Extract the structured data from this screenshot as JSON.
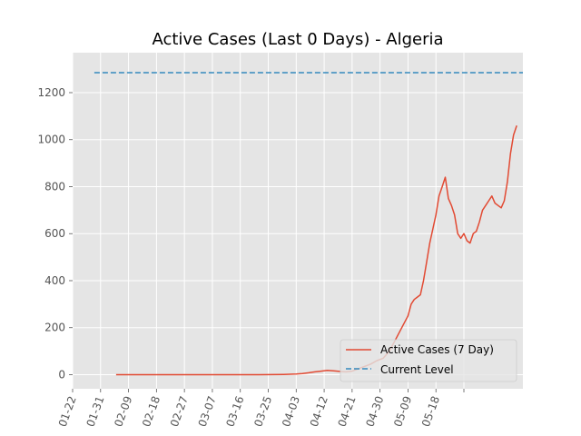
{
  "chart_data": {
    "type": "line",
    "title": "Active Cases (Last 0 Days) - Algeria",
    "xlabel": "",
    "ylabel": "",
    "x_tick_labels": [
      "01-22",
      "01-31",
      "02-09",
      "02-18",
      "02-27",
      "03-07",
      "03-16",
      "03-25",
      "04-03",
      "04-12",
      "04-21",
      "04-30",
      "05-09",
      "05-18"
    ],
    "y_tick_labels": [
      "0",
      "200",
      "400",
      "600",
      "800",
      "1000",
      "1200"
    ],
    "y_ticks": [
      0,
      200,
      400,
      600,
      800,
      1000,
      1200
    ],
    "x_range_days": [
      0,
      145
    ],
    "ylim": [
      -60,
      1370
    ],
    "grid": true,
    "legend_position": "lower-right",
    "background_color": "#e5e5e5",
    "series": [
      {
        "name": "Active Cases (7 Day)",
        "color": "#e24a33",
        "style": "solid",
        "x_days": [
          14,
          20,
          30,
          40,
          50,
          60,
          68,
          70,
          72,
          74,
          76,
          78,
          80,
          82,
          84,
          86,
          88,
          90,
          92,
          94,
          96,
          98,
          100,
          102,
          104,
          106,
          108,
          109,
          110,
          111,
          112,
          113,
          114,
          115,
          116,
          117,
          118,
          119,
          120,
          121,
          122,
          123,
          124,
          125,
          126,
          127,
          128,
          129,
          130,
          131,
          132,
          133,
          134,
          135,
          136,
          137,
          138,
          139,
          140,
          141,
          142,
          143
        ],
        "values": [
          0,
          0,
          0,
          0,
          0,
          0,
          1,
          2,
          3,
          5,
          8,
          12,
          15,
          18,
          16,
          14,
          12,
          15,
          25,
          35,
          45,
          60,
          70,
          100,
          150,
          200,
          250,
          300,
          320,
          330,
          340,
          400,
          480,
          560,
          620,
          680,
          760,
          800,
          840,
          750,
          720,
          680,
          600,
          580,
          600,
          570,
          560,
          600,
          610,
          650,
          700,
          720,
          740,
          760,
          730,
          720,
          710,
          740,
          820,
          940,
          1020,
          1060
        ]
      },
      {
        "name": "Current Level",
        "color": "#348abd",
        "style": "dashed",
        "x_days": [
          7,
          145
        ],
        "values": [
          1285,
          1285
        ]
      }
    ]
  }
}
